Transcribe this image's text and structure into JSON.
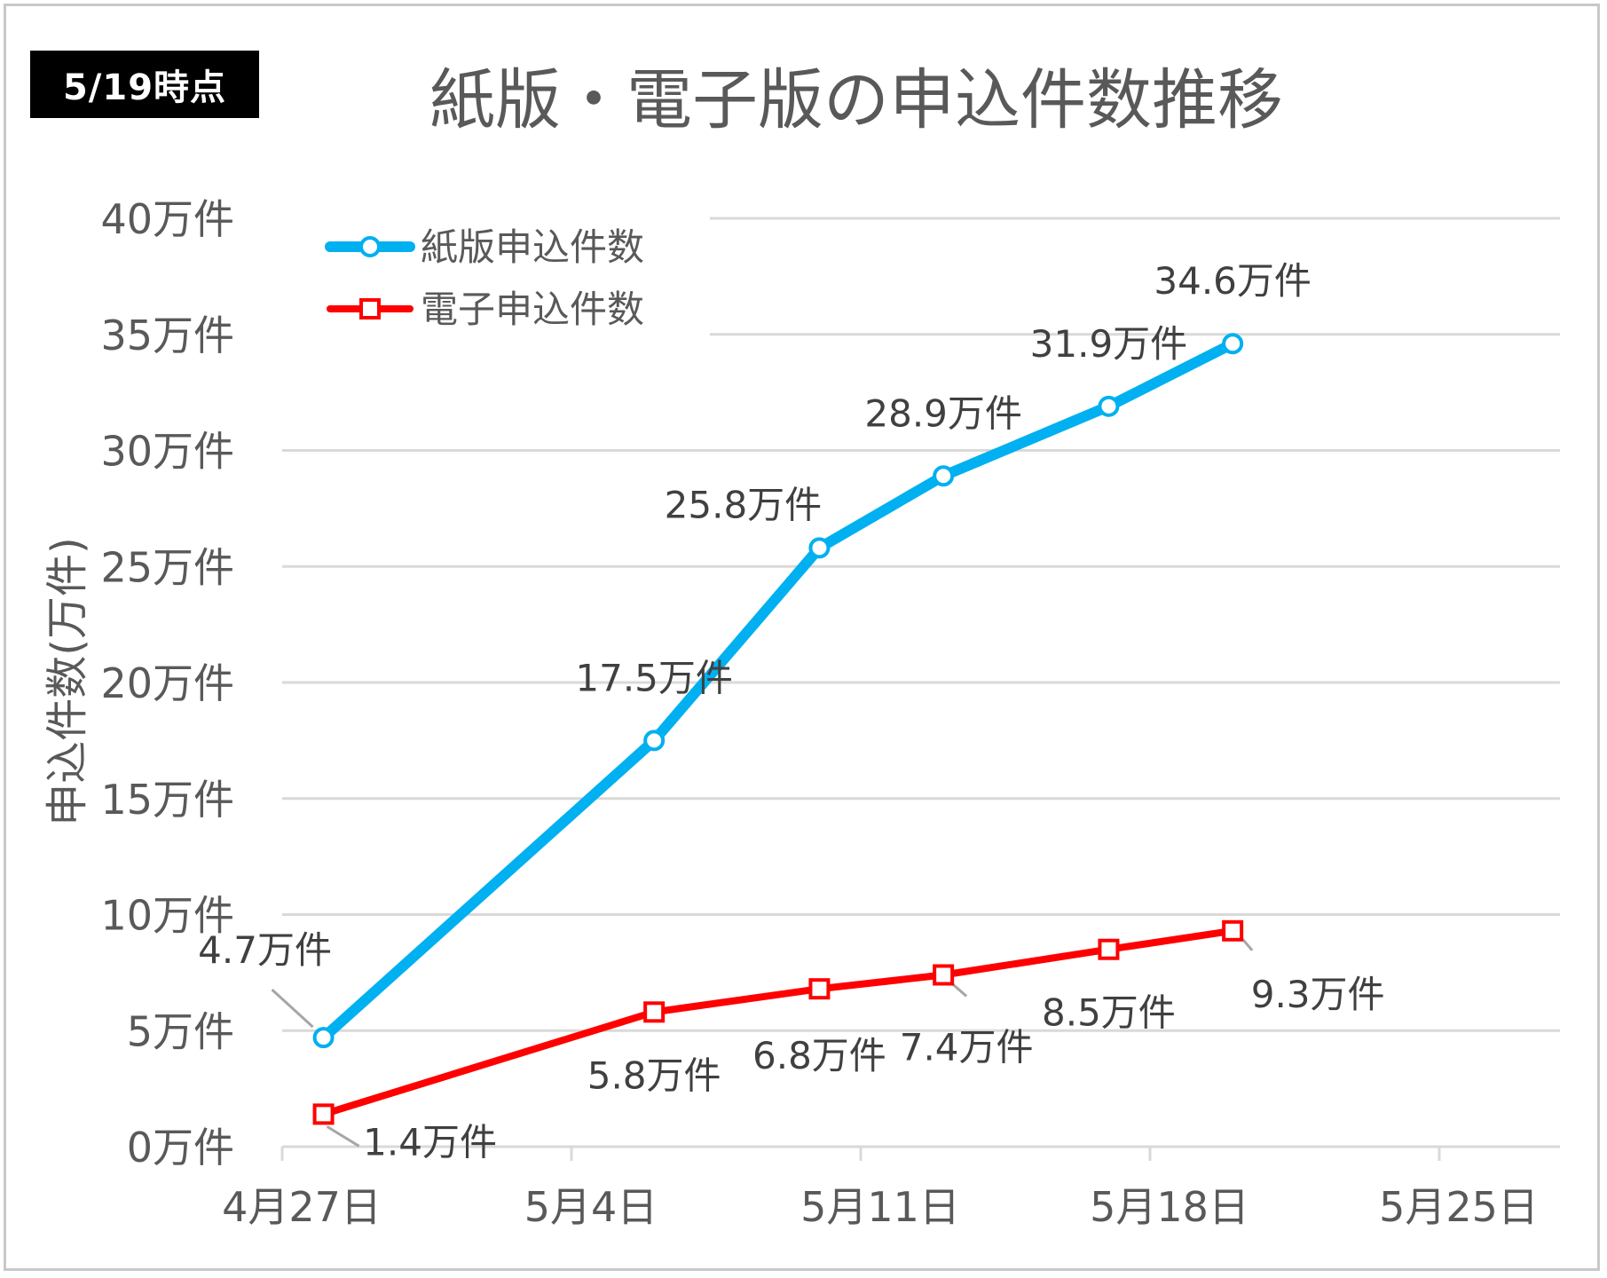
{
  "badge": "5/19時点",
  "chart_data": {
    "type": "line",
    "title": "紙版・電子版の申込件数推移",
    "ylabel": "申込件数(万件)",
    "xlabel": "",
    "ylim": [
      0,
      40
    ],
    "xlim": [
      "2020-04-27",
      "2020-05-25"
    ],
    "yticks": [
      0,
      5,
      10,
      15,
      20,
      25,
      30,
      35,
      40
    ],
    "ytick_labels": [
      "0万件",
      "5万件",
      "10万件",
      "15万件",
      "20万件",
      "25万件",
      "30万件",
      "35万件",
      "40万件"
    ],
    "xticks": [
      "2020-04-27",
      "2020-05-04",
      "2020-05-11",
      "2020-05-18",
      "2020-05-25"
    ],
    "xtick_labels": [
      "4月27日",
      "5月4日",
      "5月11日",
      "5月18日",
      "5月25日"
    ],
    "grid": "horizontal",
    "legend": "top-left",
    "series": [
      {
        "name": "紙版申込件数",
        "color": "#00b0f0",
        "marker": "circle",
        "x": [
          "2020-04-28",
          "2020-05-06",
          "2020-05-10",
          "2020-05-13",
          "2020-05-17",
          "2020-05-20"
        ],
        "values": [
          4.7,
          17.5,
          25.8,
          28.9,
          31.9,
          34.6
        ],
        "labels": [
          "4.7万件",
          "17.5万件",
          "25.8万件",
          "28.9万件",
          "31.9万件",
          "34.6万件"
        ]
      },
      {
        "name": "電子申込件数",
        "color": "#ff0000",
        "marker": "square",
        "x": [
          "2020-04-28",
          "2020-05-06",
          "2020-05-10",
          "2020-05-13",
          "2020-05-17",
          "2020-05-20"
        ],
        "values": [
          1.4,
          5.8,
          6.8,
          7.4,
          8.5,
          9.3
        ],
        "labels": [
          "1.4万件",
          "5.8万件",
          "6.8万件",
          "7.4万件",
          "8.5万件",
          "9.3万件"
        ]
      }
    ]
  }
}
